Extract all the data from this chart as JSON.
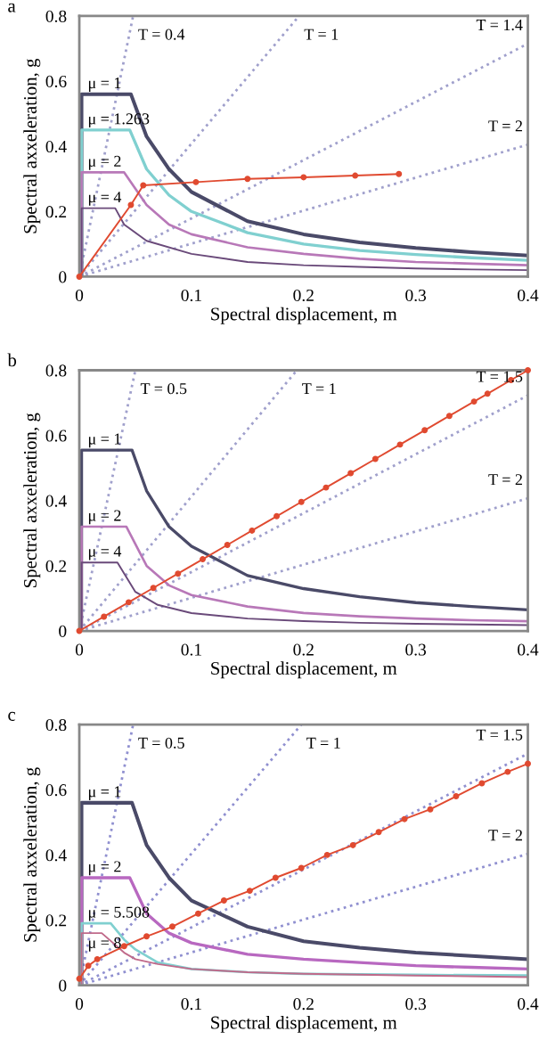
{
  "chart_data": [
    {
      "type": "line",
      "title": "a",
      "xlabel": "Spectral displacement, m",
      "ylabel": "Spectral axxeleration, g",
      "xlim": [
        0,
        0.4
      ],
      "ylim": [
        0,
        0.8
      ],
      "xticks": [
        0,
        0.1,
        0.2,
        0.3,
        0.4
      ],
      "yticks": [
        0,
        0.2,
        0.4,
        0.6,
        0.8
      ],
      "grid": false,
      "legend": false,
      "series": [
        {
          "name": "T = 0.4",
          "color": "#a0a0cc",
          "line_style": "dotted",
          "x": [
            0,
            0.048
          ],
          "values": [
            0,
            0.8
          ]
        },
        {
          "name": "T = 1",
          "color": "#a0a0cc",
          "line_style": "dotted",
          "x": [
            0,
            0.196
          ],
          "values": [
            0,
            0.8
          ]
        },
        {
          "name": "T = 1.4",
          "color": "#a0a0cc",
          "line_style": "dotted",
          "x": [
            0,
            0.4
          ],
          "values": [
            0,
            0.715
          ]
        },
        {
          "name": "T = 2",
          "color": "#a0a0cc",
          "line_style": "dotted",
          "x": [
            0,
            0.4
          ],
          "values": [
            0,
            0.405
          ]
        },
        {
          "name": "μ = 1",
          "color": "#4a4a68",
          "line_style": "solid",
          "x": [
            0.002,
            0.002,
            0.046,
            0.06,
            0.08,
            0.1,
            0.15,
            0.2,
            0.25,
            0.3,
            0.35,
            0.4
          ],
          "values": [
            0,
            0.56,
            0.56,
            0.43,
            0.33,
            0.26,
            0.17,
            0.13,
            0.105,
            0.088,
            0.075,
            0.065
          ]
        },
        {
          "name": "μ = 1.263",
          "color": "#80d0d0",
          "line_style": "solid",
          "x": [
            0.002,
            0.002,
            0.045,
            0.06,
            0.08,
            0.1,
            0.15,
            0.2,
            0.25,
            0.3,
            0.35,
            0.4
          ],
          "values": [
            0,
            0.45,
            0.45,
            0.33,
            0.25,
            0.2,
            0.135,
            0.1,
            0.08,
            0.068,
            0.058,
            0.05
          ]
        },
        {
          "name": "μ = 2",
          "color": "#b878b8",
          "line_style": "solid",
          "x": [
            0.002,
            0.002,
            0.04,
            0.06,
            0.08,
            0.1,
            0.15,
            0.2,
            0.25,
            0.3,
            0.35,
            0.4
          ],
          "values": [
            0,
            0.32,
            0.32,
            0.22,
            0.16,
            0.13,
            0.09,
            0.07,
            0.055,
            0.045,
            0.04,
            0.035
          ]
        },
        {
          "name": "μ = 4",
          "color": "#6a4a7a",
          "line_style": "solid",
          "x": [
            0.002,
            0.002,
            0.032,
            0.04,
            0.06,
            0.1,
            0.15,
            0.2,
            0.25,
            0.3,
            0.35,
            0.4
          ],
          "values": [
            0,
            0.21,
            0.21,
            0.16,
            0.11,
            0.07,
            0.045,
            0.035,
            0.03,
            0.025,
            0.022,
            0.02
          ]
        },
        {
          "color": "#e04a30",
          "line_style": "solid",
          "marker": "circle",
          "x": [
            0,
            0.046,
            0.057,
            0.104,
            0.15,
            0.2,
            0.246,
            0.285
          ],
          "values": [
            0,
            0.22,
            0.28,
            0.29,
            0.3,
            0.305,
            0.31,
            0.315
          ]
        }
      ]
    },
    {
      "type": "line",
      "title": "b",
      "xlabel": "Spectral displacement, m",
      "ylabel": "Spectral axxeleration, g",
      "xlim": [
        0,
        0.4
      ],
      "ylim": [
        0,
        0.8
      ],
      "xticks": [
        0,
        0.1,
        0.2,
        0.3,
        0.4
      ],
      "yticks": [
        0,
        0.2,
        0.4,
        0.6,
        0.8
      ],
      "grid": false,
      "legend": false,
      "series": [
        {
          "name": "T = 0.5",
          "color": "#a0a0cc",
          "line_style": "dotted",
          "x": [
            0,
            0.05
          ],
          "values": [
            0,
            0.8
          ]
        },
        {
          "name": "T = 1",
          "color": "#a0a0cc",
          "line_style": "dotted",
          "x": [
            0,
            0.194
          ],
          "values": [
            0,
            0.8
          ]
        },
        {
          "name": "T = 1.5",
          "color": "#a0a0cc",
          "line_style": "dotted",
          "x": [
            0,
            0.4
          ],
          "values": [
            0,
            0.723
          ]
        },
        {
          "name": "T = 2",
          "color": "#a0a0cc",
          "line_style": "dotted",
          "x": [
            0,
            0.4
          ],
          "values": [
            0,
            0.407
          ]
        },
        {
          "name": "μ = 1",
          "color": "#4a4a68",
          "line_style": "solid",
          "x": [
            0.002,
            0.002,
            0.047,
            0.06,
            0.08,
            0.1,
            0.15,
            0.2,
            0.25,
            0.3,
            0.35,
            0.4
          ],
          "values": [
            0,
            0.555,
            0.555,
            0.43,
            0.32,
            0.26,
            0.17,
            0.13,
            0.105,
            0.087,
            0.075,
            0.065
          ]
        },
        {
          "name": "μ = 2",
          "color": "#b878b8",
          "line_style": "solid",
          "x": [
            0.002,
            0.002,
            0.042,
            0.06,
            0.08,
            0.1,
            0.15,
            0.2,
            0.25,
            0.3,
            0.35,
            0.4
          ],
          "values": [
            0,
            0.32,
            0.32,
            0.2,
            0.14,
            0.11,
            0.075,
            0.055,
            0.045,
            0.038,
            0.033,
            0.03
          ]
        },
        {
          "name": "μ = 4",
          "color": "#6a4a7a",
          "line_style": "solid",
          "x": [
            0.002,
            0.002,
            0.034,
            0.05,
            0.07,
            0.1,
            0.15,
            0.2,
            0.25,
            0.3,
            0.35,
            0.4
          ],
          "values": [
            0,
            0.21,
            0.21,
            0.12,
            0.08,
            0.055,
            0.038,
            0.03,
            0.025,
            0.022,
            0.02,
            0.018
          ]
        },
        {
          "color": "#e04a30",
          "line_style": "solid",
          "marker": "circle",
          "x": [
            0,
            0.022,
            0.044,
            0.066,
            0.088,
            0.11,
            0.132,
            0.154,
            0.176,
            0.198,
            0.22,
            0.242,
            0.264,
            0.286,
            0.308,
            0.33,
            0.352,
            0.364,
            0.385,
            0.4
          ],
          "values": [
            0,
            0.044,
            0.088,
            0.132,
            0.176,
            0.22,
            0.264,
            0.308,
            0.352,
            0.396,
            0.44,
            0.484,
            0.528,
            0.572,
            0.616,
            0.66,
            0.704,
            0.728,
            0.77,
            0.8
          ]
        }
      ]
    },
    {
      "type": "line",
      "title": "c",
      "xlabel": "Spectral displacement, m",
      "ylabel": "Spectral axxeleration, g",
      "xlim": [
        0,
        0.4
      ],
      "ylim": [
        0,
        0.8
      ],
      "xticks": [
        0,
        0.1,
        0.2,
        0.3,
        0.4
      ],
      "yticks": [
        0,
        0.2,
        0.4,
        0.6,
        0.8
      ],
      "grid": false,
      "legend": false,
      "series": [
        {
          "name": "T = 0.5",
          "color": "#9090d0",
          "line_style": "dotted",
          "x": [
            0,
            0.048
          ],
          "values": [
            0,
            0.8
          ]
        },
        {
          "name": "T = 1",
          "color": "#9090d0",
          "line_style": "dotted",
          "x": [
            0,
            0.198
          ],
          "values": [
            0,
            0.8
          ]
        },
        {
          "name": "T = 1.5",
          "color": "#9090d0",
          "line_style": "dotted",
          "x": [
            0,
            0.4
          ],
          "values": [
            0,
            0.711
          ]
        },
        {
          "name": "T = 2",
          "color": "#9090d0",
          "line_style": "dotted",
          "x": [
            0,
            0.4
          ],
          "values": [
            0,
            0.403
          ]
        },
        {
          "name": "μ = 1",
          "color": "#4a4a68",
          "line_style": "solid",
          "x": [
            0.002,
            0.002,
            0.047,
            0.06,
            0.08,
            0.1,
            0.15,
            0.2,
            0.25,
            0.3,
            0.35,
            0.4
          ],
          "values": [
            0,
            0.56,
            0.56,
            0.43,
            0.33,
            0.26,
            0.18,
            0.135,
            0.115,
            0.1,
            0.09,
            0.08
          ]
        },
        {
          "name": "μ = 2",
          "color": "#b868c0",
          "line_style": "solid",
          "x": [
            0.002,
            0.002,
            0.045,
            0.06,
            0.08,
            0.1,
            0.15,
            0.2,
            0.25,
            0.3,
            0.35,
            0.4
          ],
          "values": [
            0,
            0.33,
            0.33,
            0.22,
            0.16,
            0.13,
            0.095,
            0.08,
            0.07,
            0.06,
            0.055,
            0.05
          ]
        },
        {
          "name": "μ = 5.508",
          "color": "#80d0d0",
          "line_style": "solid",
          "x": [
            0.002,
            0.002,
            0.028,
            0.04,
            0.05,
            0.07,
            0.1,
            0.15,
            0.2,
            0.3,
            0.4
          ],
          "values": [
            0,
            0.19,
            0.19,
            0.14,
            0.11,
            0.07,
            0.05,
            0.04,
            0.035,
            0.032,
            0.03
          ]
        },
        {
          "name": "μ = 8",
          "color": "#c06a8a",
          "line_style": "solid",
          "x": [
            0.002,
            0.002,
            0.02,
            0.04,
            0.05,
            0.07,
            0.1,
            0.15,
            0.2,
            0.3,
            0.4
          ],
          "values": [
            0,
            0.16,
            0.16,
            0.1,
            0.08,
            0.065,
            0.05,
            0.04,
            0.035,
            0.03,
            0.025
          ]
        },
        {
          "color": "#e04a30",
          "line_style": "solid",
          "marker": "circle",
          "x": [
            0,
            0.008,
            0.016,
            0.04,
            0.06,
            0.083,
            0.106,
            0.129,
            0.152,
            0.175,
            0.198,
            0.221,
            0.244,
            0.267,
            0.29,
            0.313,
            0.336,
            0.359,
            0.382,
            0.4
          ],
          "values": [
            0.02,
            0.06,
            0.08,
            0.12,
            0.15,
            0.18,
            0.22,
            0.26,
            0.29,
            0.33,
            0.36,
            0.4,
            0.43,
            0.47,
            0.51,
            0.54,
            0.58,
            0.62,
            0.655,
            0.68
          ]
        }
      ]
    }
  ]
}
